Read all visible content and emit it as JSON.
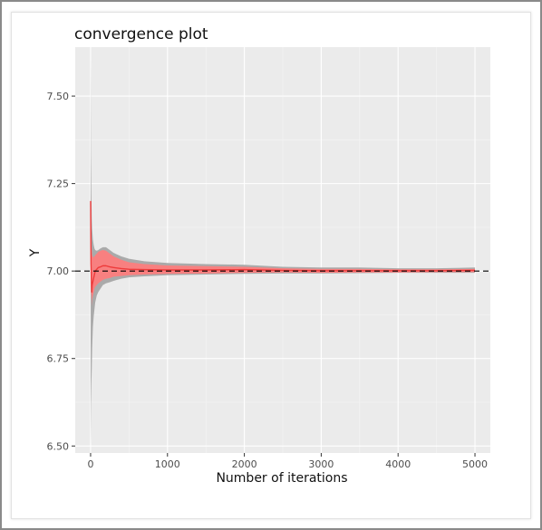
{
  "chart_data": {
    "type": "line",
    "title": "convergence plot",
    "xlabel": "Number of iterations",
    "ylabel": "Y",
    "xlim": [
      -200,
      5200
    ],
    "ylim": [
      6.48,
      7.64
    ],
    "xticks": [
      0,
      1000,
      2000,
      3000,
      4000,
      5000
    ],
    "yticks": [
      6.5,
      6.75,
      7.0,
      7.25,
      7.5
    ],
    "ytick_labels": [
      "6.50",
      "6.75",
      "7.00",
      "7.25",
      "7.50"
    ],
    "xtick_labels": [
      "0",
      "1000",
      "2000",
      "3000",
      "4000",
      "5000"
    ],
    "grid": true,
    "reference_line": {
      "y": 7.0,
      "style": "dashed",
      "color": "#000000"
    },
    "series": [
      {
        "style": "ribbon",
        "color": "#aaaaaa",
        "x": [
          1,
          5,
          10,
          15,
          20,
          30,
          40,
          50,
          60,
          80,
          100,
          130,
          160,
          200,
          250,
          300,
          400,
          500,
          700,
          1000,
          1500,
          2000,
          2500,
          3000,
          3500,
          4000,
          4500,
          5000
        ],
        "lower": [
          6.5,
          6.62,
          6.68,
          6.72,
          6.78,
          6.84,
          6.87,
          6.89,
          6.91,
          6.93,
          6.94,
          6.95,
          6.96,
          6.965,
          6.968,
          6.972,
          6.978,
          6.982,
          6.985,
          6.988,
          6.99,
          6.992,
          6.993,
          6.993,
          6.994,
          6.995,
          6.995,
          6.995
        ],
        "upper": [
          7.62,
          7.33,
          7.22,
          7.15,
          7.12,
          7.09,
          7.075,
          7.065,
          7.06,
          7.058,
          7.06,
          7.065,
          7.068,
          7.068,
          7.06,
          7.052,
          7.042,
          7.035,
          7.028,
          7.023,
          7.02,
          7.018,
          7.012,
          7.01,
          7.01,
          7.008,
          7.008,
          7.01
        ]
      },
      {
        "style": "ribbon",
        "color": "#f88080",
        "x": [
          1,
          5,
          10,
          15,
          20,
          30,
          40,
          50,
          60,
          80,
          100,
          130,
          160,
          200,
          250,
          300,
          400,
          500,
          700,
          1000,
          1500,
          2000,
          2500,
          3000,
          3500,
          4000,
          4500,
          5000
        ],
        "lower": [
          6.99,
          6.93,
          6.94,
          6.9,
          6.92,
          6.93,
          6.94,
          6.95,
          6.955,
          6.96,
          6.965,
          6.97,
          6.975,
          6.978,
          6.98,
          6.984,
          6.986,
          6.988,
          6.99,
          6.992,
          6.993,
          6.995,
          6.996,
          6.995,
          6.996,
          6.996,
          6.997,
          6.997
        ],
        "upper": [
          7.22,
          7.12,
          7.08,
          7.06,
          7.045,
          7.04,
          7.04,
          7.042,
          7.045,
          7.05,
          7.055,
          7.058,
          7.06,
          7.058,
          7.05,
          7.042,
          7.032,
          7.025,
          7.02,
          7.016,
          7.014,
          7.012,
          7.008,
          7.006,
          7.006,
          7.005,
          7.005,
          7.006
        ]
      },
      {
        "style": "line",
        "color": "#ee3b3b",
        "x": [
          1,
          5,
          10,
          15,
          20,
          30,
          40,
          50,
          60,
          80,
          100,
          130,
          160,
          200,
          250,
          300,
          400,
          500,
          700,
          1000,
          1500,
          2000,
          2500,
          3000,
          3500,
          4000,
          4500,
          5000
        ],
        "y": [
          7.2,
          7.02,
          6.98,
          6.94,
          6.96,
          6.97,
          6.98,
          6.99,
          7.0,
          7.005,
          7.01,
          7.012,
          7.015,
          7.015,
          7.012,
          7.01,
          7.007,
          7.005,
          7.004,
          7.003,
          7.003,
          7.004,
          7.002,
          7.001,
          7.001,
          7.001,
          7.001,
          7.002
        ]
      }
    ],
    "colors": {
      "panel_background": "#ebebeb",
      "grid_major": "#ffffff",
      "grid_minor": "#f5f5f5"
    }
  }
}
